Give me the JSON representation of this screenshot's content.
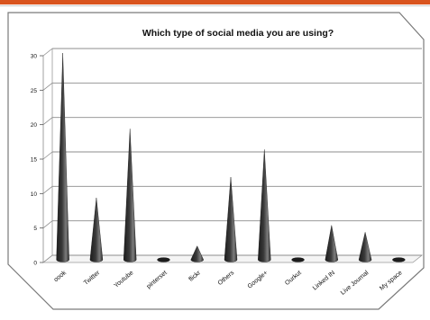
{
  "chart_data": {
    "type": "bar",
    "title": "Which type of social media you are using?",
    "xlabel": "",
    "ylabel": "",
    "ylim": [
      0,
      30
    ],
    "yticks": [
      "0",
      "5",
      "10",
      "15",
      "20",
      "25",
      "30"
    ],
    "categories": [
      "Facebook",
      "Twitter",
      "Youtube",
      "pinterset",
      "flickr",
      "Others",
      "Google+",
      "Ourkut",
      "Linked IN",
      "Live Journal",
      "My space"
    ],
    "category_labels": [
      "oook",
      "Twitter",
      "Youtube",
      "pinterset",
      "flickr",
      "Others",
      "Google+",
      "Ourkut",
      "Linked IN",
      "Live Journal",
      "My space"
    ],
    "values": [
      30,
      9,
      19,
      0,
      2,
      12,
      16,
      0,
      5,
      4,
      0
    ],
    "grid": true,
    "legend": "none",
    "bar_shape": "cone"
  },
  "colors": {
    "top_border": "#d9541e",
    "frame": "#7a7a7a",
    "gridline": "#8c8c8c",
    "cone_dark": "#1c1c1c",
    "cone_light": "#7d7d7d",
    "text": "#111111"
  }
}
